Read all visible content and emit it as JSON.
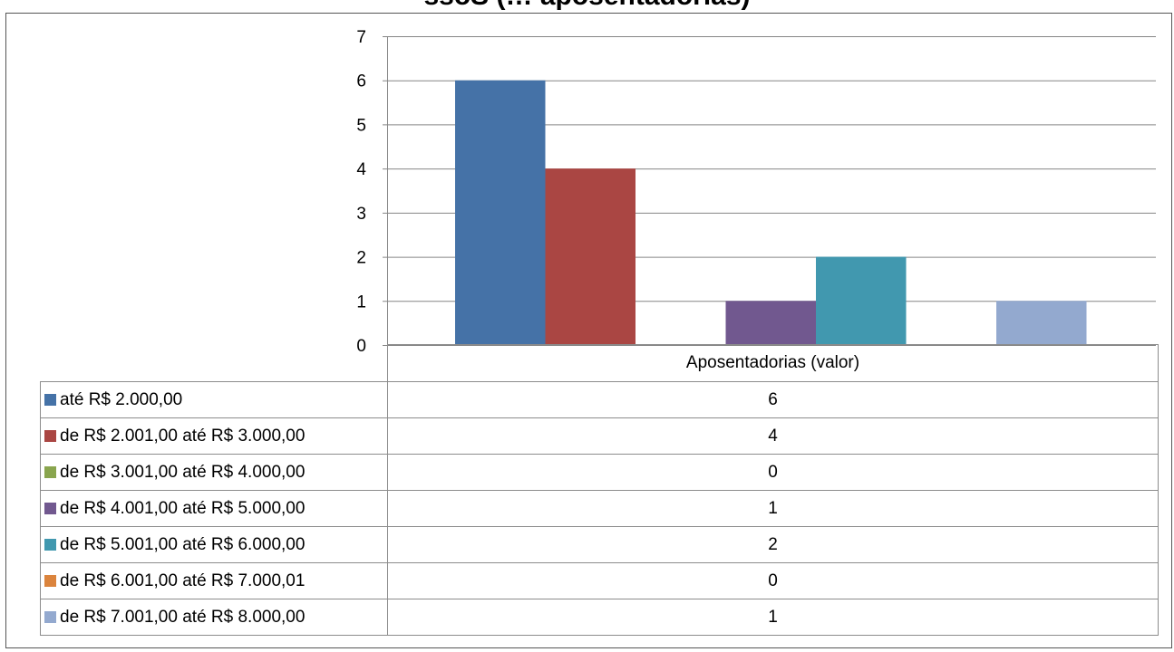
{
  "chart_data": {
    "type": "bar",
    "title": "ssoS (… aposentadorias)",
    "categories": [
      "Aposentadorias (valor)"
    ],
    "ylim": [
      0,
      7
    ],
    "yticks": [
      0,
      1,
      2,
      3,
      4,
      5,
      6,
      7
    ],
    "grid": true,
    "legend": "data-table",
    "series": [
      {
        "name": "até R$ 2.000,00",
        "values": [
          6
        ],
        "color": "#4572A7"
      },
      {
        "name": "de R$ 2.001,00 até R$ 3.000,00",
        "values": [
          4
        ],
        "color": "#AA4643"
      },
      {
        "name": "de R$ 3.001,00 até R$ 4.000,00",
        "values": [
          0
        ],
        "color": "#89A54E"
      },
      {
        "name": "de R$ 4.001,00 até R$ 5.000,00",
        "values": [
          1
        ],
        "color": "#71588F"
      },
      {
        "name": "de R$ 5.001,00 até R$ 6.000,00",
        "values": [
          2
        ],
        "color": "#4198AF"
      },
      {
        "name": "de R$ 6.001,00 até R$ 7.000,01",
        "values": [
          0
        ],
        "color": "#DB843D"
      },
      {
        "name": "de R$ 7.001,00 até R$ 8.000,00",
        "values": [
          1
        ],
        "color": "#93A9CF"
      }
    ]
  }
}
